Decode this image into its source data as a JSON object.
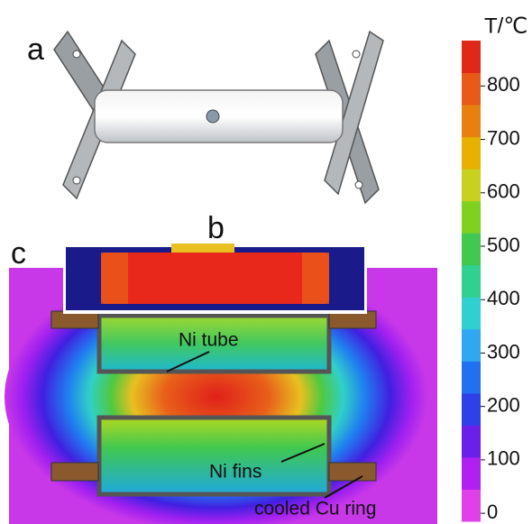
{
  "panels": {
    "a": "a",
    "b": "b",
    "c": "c"
  },
  "annotations": {
    "tube": "Ni tube",
    "fins": "Ni fins",
    "ring": "cooled Cu ring"
  },
  "colorbar": {
    "title": "T/℃",
    "lim": [
      -15,
      885
    ],
    "ticks": [
      0,
      100,
      200,
      300,
      400,
      500,
      600,
      700,
      800
    ]
  }
}
